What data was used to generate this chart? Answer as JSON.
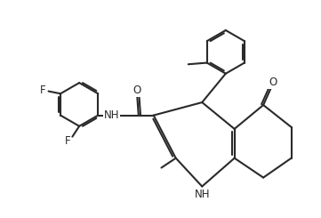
{
  "bg": "#ffffff",
  "lc": "#2a2a2a",
  "lw": 1.5,
  "fs": 8.5,
  "xlim": [
    0,
    10.5
  ],
  "ylim": [
    0,
    7.2
  ],
  "figsize": [
    3.61,
    2.45
  ],
  "dpi": 100
}
